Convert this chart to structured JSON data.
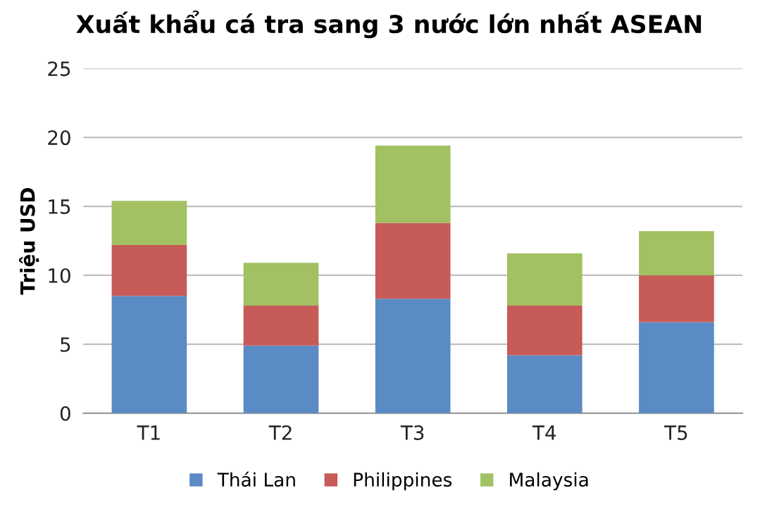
{
  "chart_data": {
    "type": "bar",
    "title": "Xuất khẩu cá tra sang 3 nước lớn nhất ASEAN",
    "ylabel": "Triệu USD",
    "categories": [
      "T1",
      "T2",
      "T3",
      "T4",
      "T5"
    ],
    "stacked": true,
    "series": [
      {
        "name": "Thái Lan",
        "color": "#5b8bc4",
        "values": [
          8.5,
          4.9,
          8.3,
          4.2,
          6.6
        ]
      },
      {
        "name": "Philippines",
        "color": "#c65b58",
        "values": [
          3.7,
          2.9,
          5.5,
          3.6,
          3.4
        ]
      },
      {
        "name": "Malaysia",
        "color": "#a1c162",
        "values": [
          3.2,
          3.1,
          5.6,
          3.8,
          3.2
        ]
      }
    ],
    "ylim": [
      0,
      25
    ],
    "yticks": [
      0,
      5,
      10,
      15,
      20,
      25
    ],
    "grid": "y",
    "legend": "bottom"
  }
}
